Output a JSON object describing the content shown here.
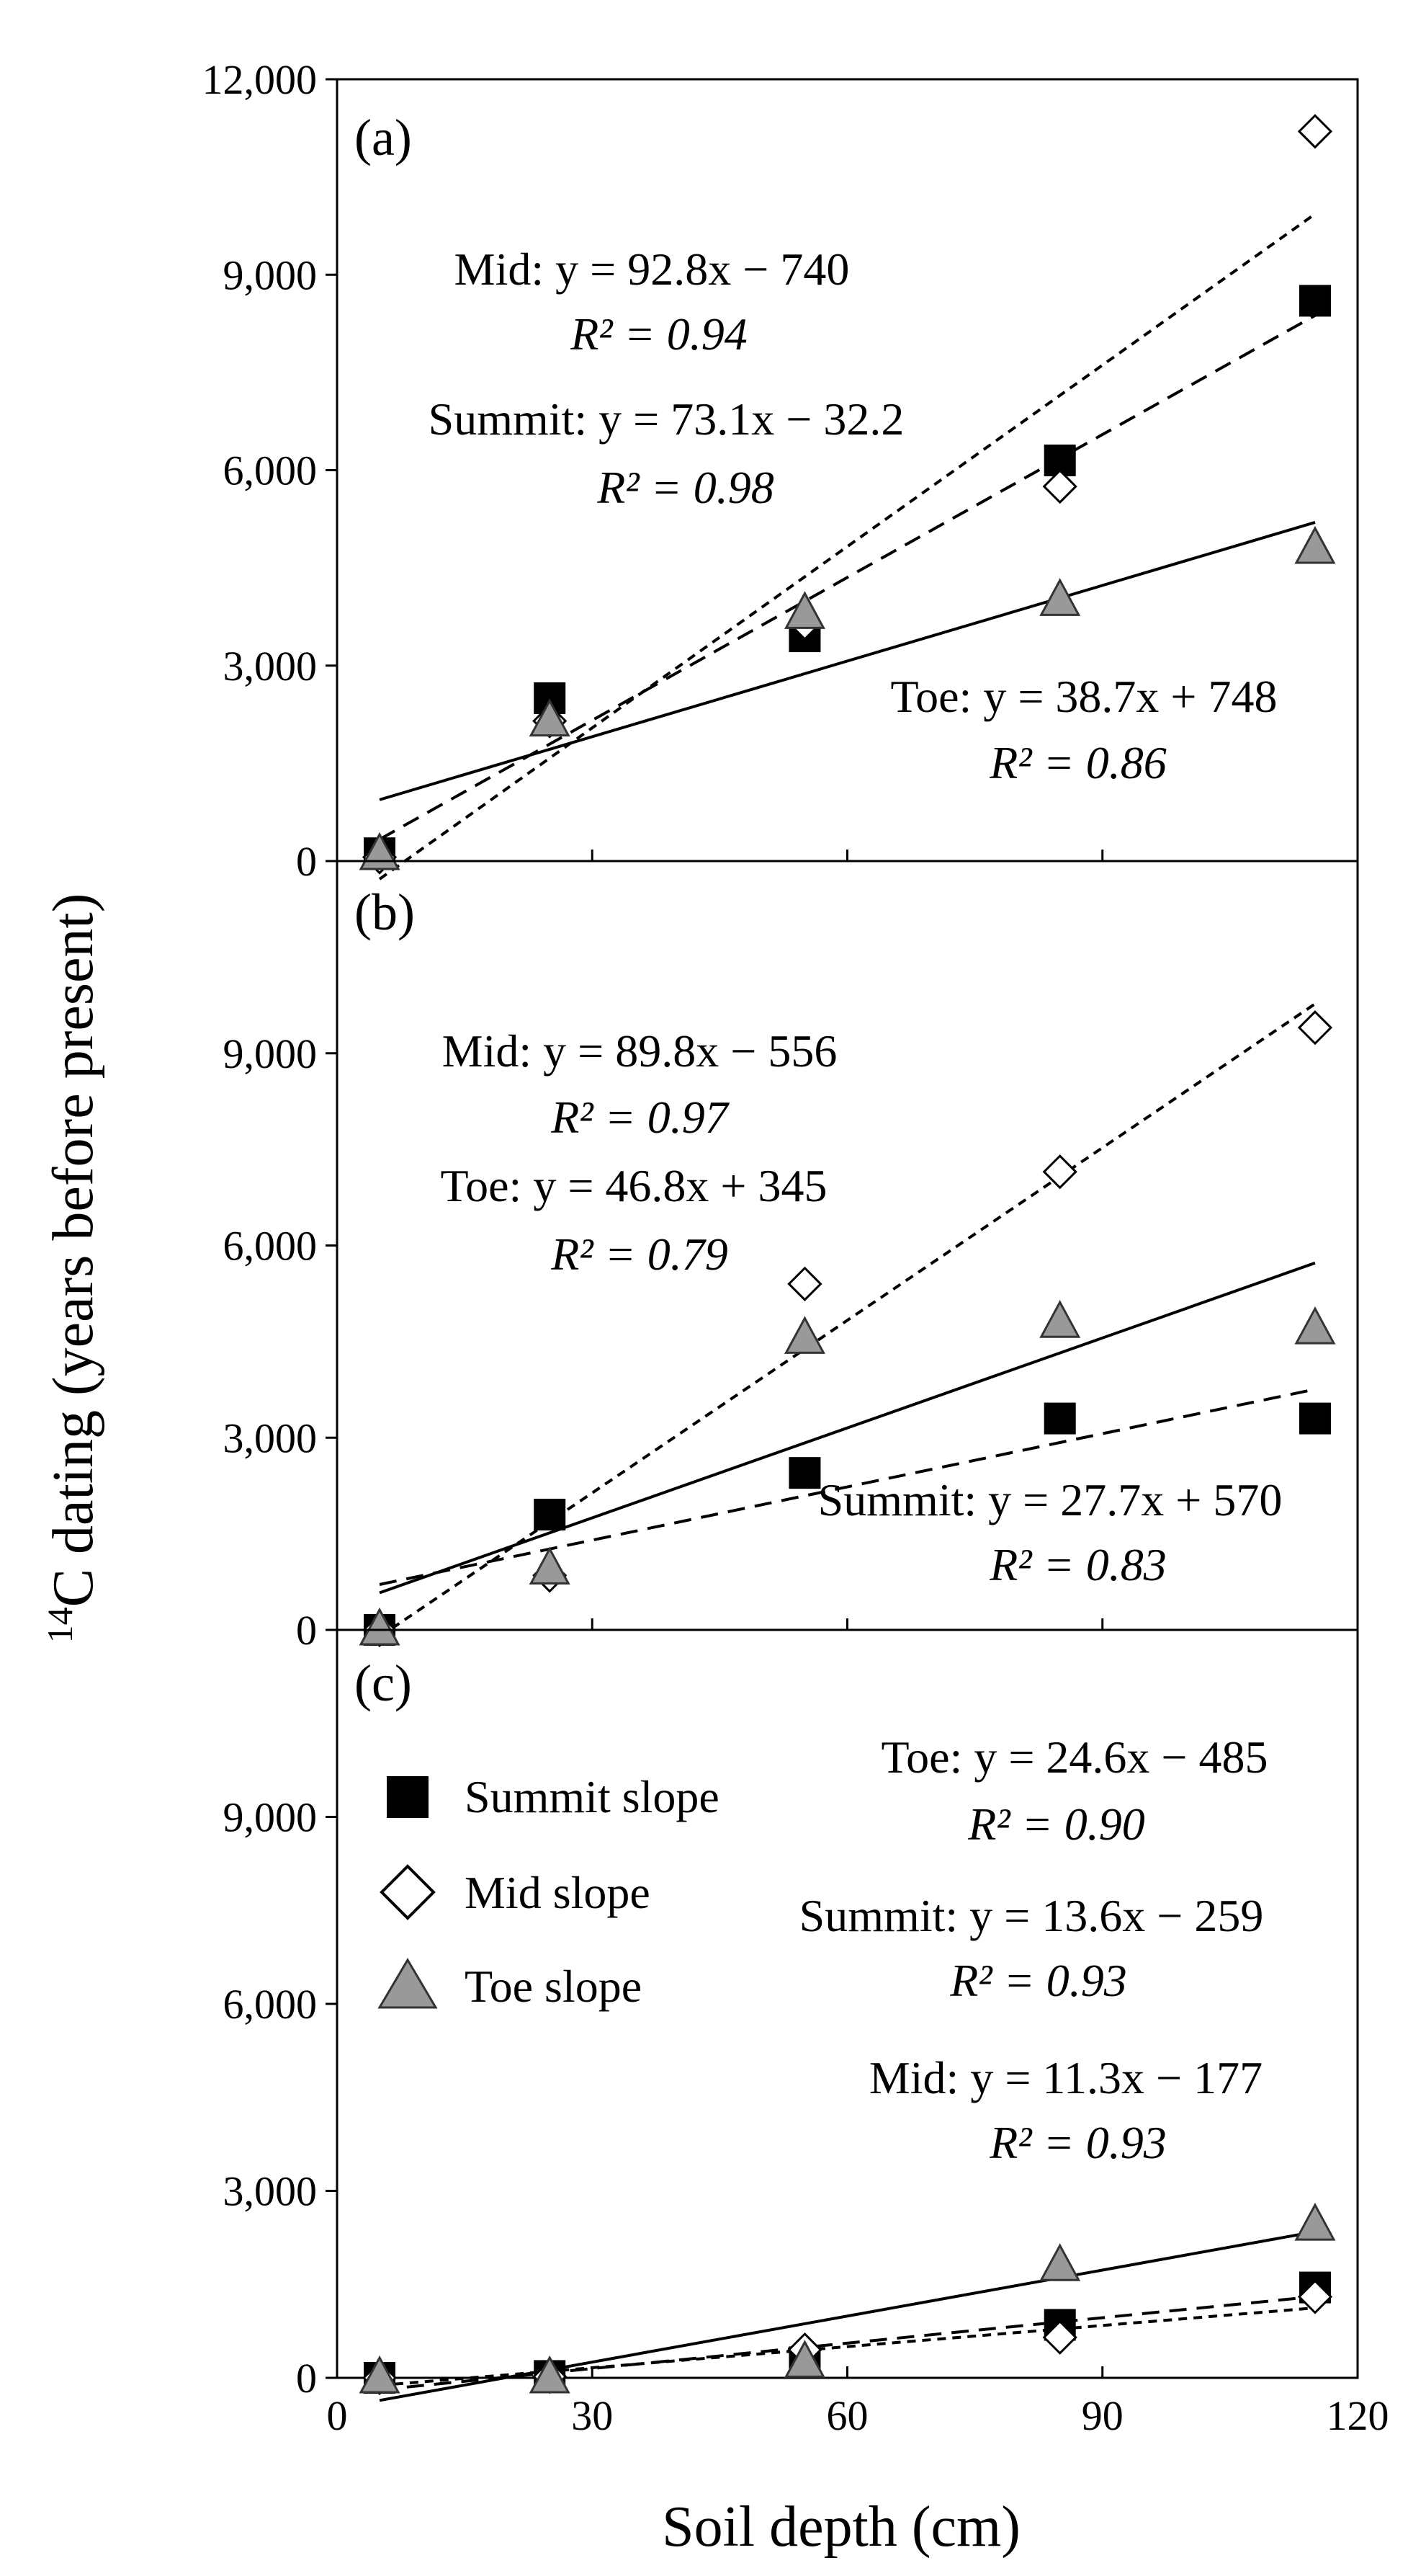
{
  "chart_data": {
    "type": "scatter",
    "xlabel": "Soil depth (cm)",
    "ylabel_sup": "14",
    "ylabel_main": "C dating (years before present)",
    "xlim": [
      0,
      120
    ],
    "xticks": [
      0,
      30,
      60,
      90,
      120
    ],
    "xtick_labels": [
      "0",
      "30",
      "60",
      "90",
      "120"
    ],
    "legend": [
      {
        "name": "Summit slope",
        "marker": "square",
        "fill": "#000000"
      },
      {
        "name": "Mid slope",
        "marker": "diamond",
        "fill": "#ffffff"
      },
      {
        "name": "Toe slope",
        "marker": "triangle",
        "fill": "#999999"
      }
    ],
    "panels": [
      {
        "label": "(a)",
        "ylim": [
          0,
          12000
        ],
        "yticks": [
          0,
          3000,
          6000,
          9000,
          12000
        ],
        "ytick_labels": [
          "0",
          "3,000",
          "6,000",
          "9,000",
          "12,000"
        ],
        "series": [
          {
            "name": "Summit",
            "marker": "square",
            "x": [
              5,
              25,
              55,
              85,
              115
            ],
            "y": [
              120,
              2500,
              3450,
              6150,
              8600
            ],
            "slope": 73.1,
            "intercept": -32.2,
            "dash": "long",
            "equation": "Summit: y = 73.1x − 32.2",
            "r2_label": "R² = 0.98"
          },
          {
            "name": "Mid",
            "marker": "diamond",
            "x": [
              5,
              25,
              55,
              85,
              115
            ],
            "y": [
              60,
              2150,
              3650,
              5750,
              11200
            ],
            "slope": 92.8,
            "intercept": -740,
            "dash": "short",
            "equation": "Mid: y = 92.8x − 740",
            "r2_label": "R² = 0.94"
          },
          {
            "name": "Toe",
            "marker": "triangle",
            "x": [
              5,
              25,
              55,
              85,
              115
            ],
            "y": [
              100,
              2150,
              3800,
              4000,
              4800
            ],
            "slope": 38.7,
            "intercept": 748,
            "dash": "solid",
            "equation": "Toe: y = 38.7x + 748",
            "r2_label": "R² = 0.86"
          }
        ]
      },
      {
        "label": "(b)",
        "ylim": [
          0,
          12000
        ],
        "yticks": [
          0,
          3000,
          6000,
          9000
        ],
        "ytick_labels": [
          "0",
          "3,000",
          "6,000",
          "9,000"
        ],
        "series": [
          {
            "name": "Summit",
            "marker": "square",
            "x": [
              5,
              25,
              55,
              85,
              115
            ],
            "y": [
              0,
              1800,
              2450,
              3300,
              3300
            ],
            "slope": 27.7,
            "intercept": 570,
            "dash": "long",
            "equation": "Summit: y = 27.7x + 570",
            "r2_label": "R² = 0.83"
          },
          {
            "name": "Mid",
            "marker": "diamond",
            "x": [
              5,
              25,
              55,
              85,
              115
            ],
            "y": [
              0,
              850,
              5400,
              7150,
              9400
            ],
            "slope": 89.8,
            "intercept": -556,
            "dash": "short",
            "equation": "Mid: y = 89.8x − 556",
            "r2_label": "R² = 0.97"
          },
          {
            "name": "Toe",
            "marker": "triangle",
            "x": [
              5,
              25,
              55,
              85,
              115
            ],
            "y": [
              0,
              950,
              4550,
              4800,
              4700
            ],
            "slope": 46.8,
            "intercept": 345,
            "dash": "solid",
            "equation": "Toe: y = 46.8x + 345",
            "r2_label": "R² = 0.79"
          }
        ]
      },
      {
        "label": "(c)",
        "ylim": [
          0,
          12000
        ],
        "yticks": [
          0,
          3000,
          6000,
          9000
        ],
        "ytick_labels": [
          "0",
          "3,000",
          "6,000",
          "9,000"
        ],
        "series": [
          {
            "name": "Summit",
            "marker": "square",
            "x": [
              5,
              25,
              55,
              85,
              115
            ],
            "y": [
              0,
              30,
              250,
              850,
              1450
            ],
            "slope": 13.6,
            "intercept": -259,
            "dash": "long",
            "equation": "Summit: y = 13.6x − 259",
            "r2_label": "R² = 0.93"
          },
          {
            "name": "Mid",
            "marker": "diamond",
            "x": [
              5,
              25,
              55,
              85,
              115
            ],
            "y": [
              0,
              20,
              450,
              650,
              1300
            ],
            "slope": 11.3,
            "intercept": -177,
            "dash": "short",
            "equation": "Mid: y = 11.3x − 177",
            "r2_label": "R² = 0.93"
          },
          {
            "name": "Toe",
            "marker": "triangle",
            "x": [
              5,
              25,
              55,
              85,
              115
            ],
            "y": [
              0,
              0,
              250,
              1800,
              2450
            ],
            "slope": 24.6,
            "intercept": -485,
            "dash": "solid",
            "equation": "Toe: y = 24.6x − 485",
            "r2_label": "R² = 0.90"
          }
        ]
      }
    ]
  }
}
